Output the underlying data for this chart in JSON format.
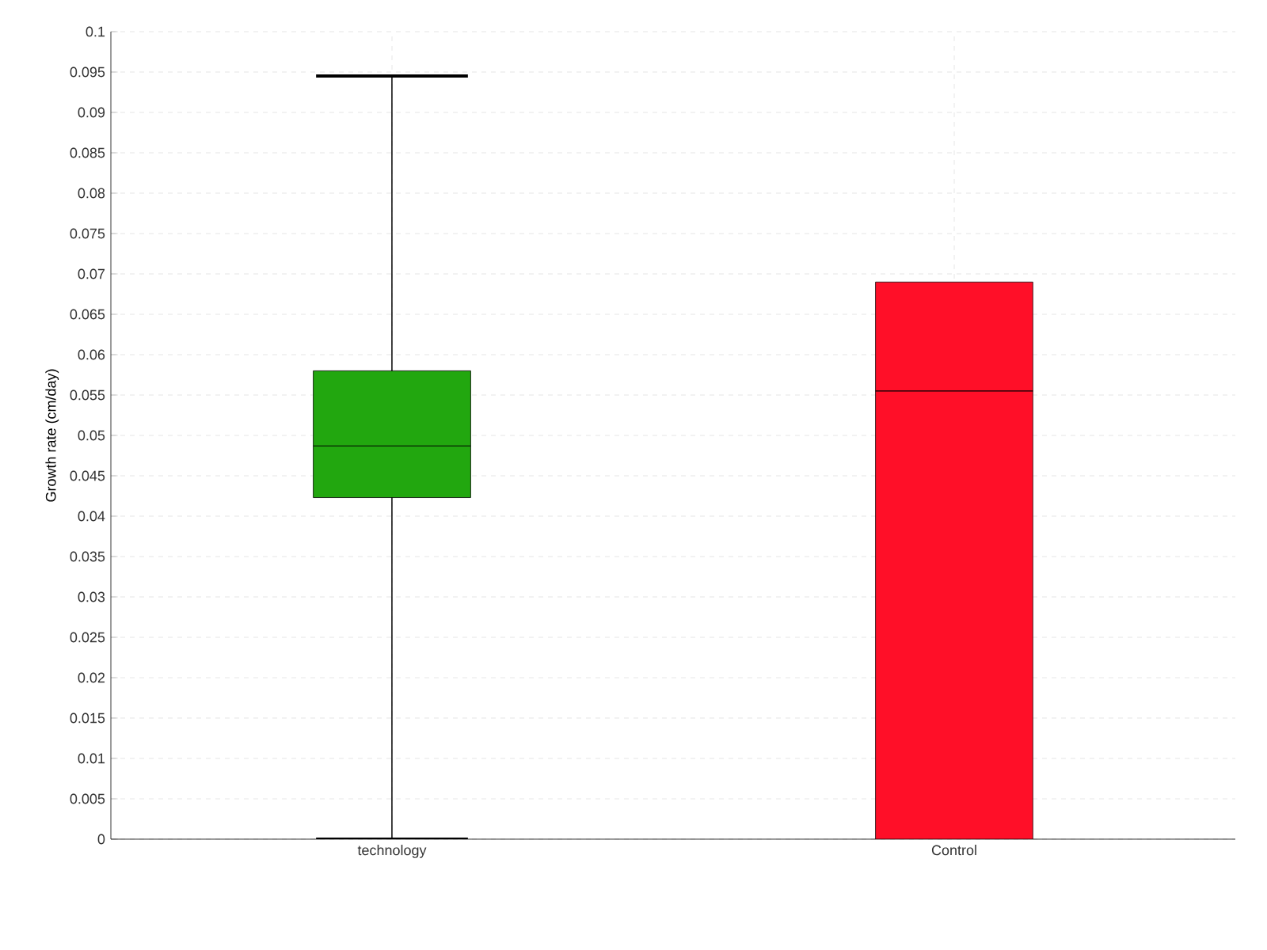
{
  "chart_data": {
    "type": "box",
    "ylabel": "Growth rate (cm/day)",
    "categories": [
      "technology",
      "Control"
    ],
    "colors": [
      "#22a70f",
      "#ff0f28"
    ],
    "boxes": [
      {
        "low": 0,
        "q1": 0.0423,
        "median": 0.0487,
        "q3": 0.058,
        "high": 0.0945
      },
      {
        "low": 0,
        "q1": 0,
        "median": 0.0555,
        "q3": 0.069,
        "high": 0.069
      }
    ],
    "ylim": [
      0,
      0.1
    ],
    "yticks": [
      0,
      0.005,
      0.01,
      0.015,
      0.02,
      0.025,
      0.03,
      0.035,
      0.04,
      0.045,
      0.05,
      0.055,
      0.06,
      0.065,
      0.07,
      0.075,
      0.08,
      0.085,
      0.09,
      0.095,
      0.1
    ],
    "grid": true
  }
}
